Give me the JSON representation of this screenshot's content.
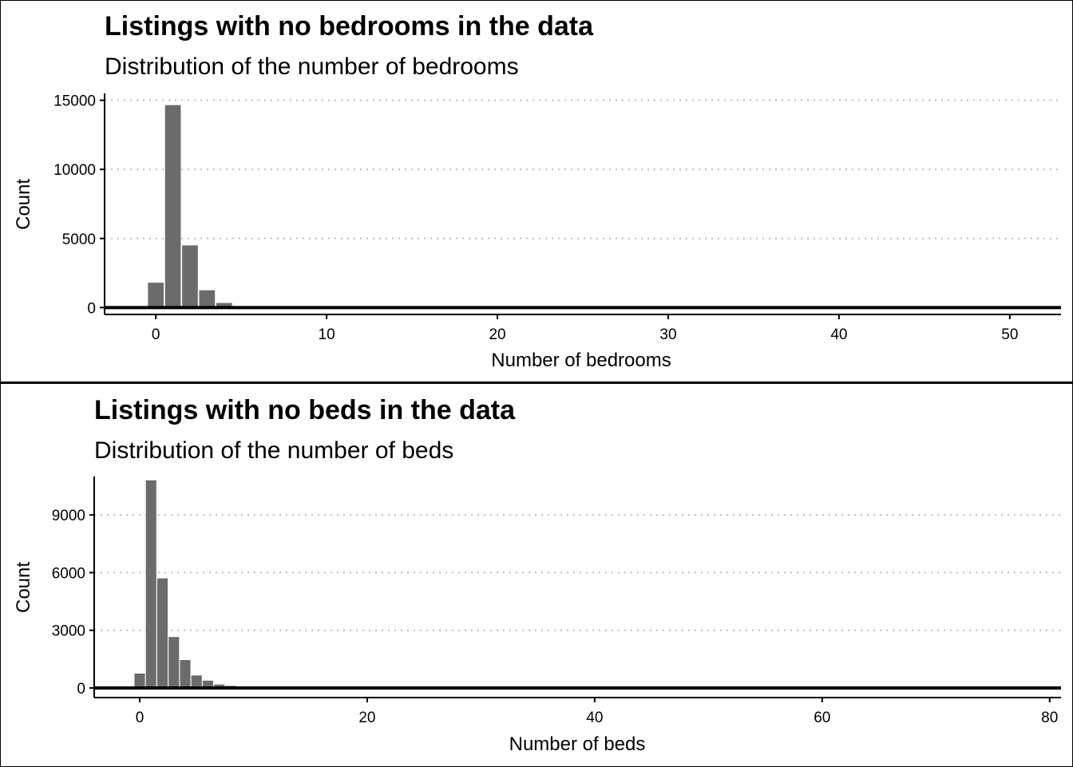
{
  "chart_data": [
    {
      "type": "bar",
      "title": "Listings with no bedrooms in the data",
      "subtitle": "Distribution of the number of bedrooms",
      "xlabel": "Number of bedrooms",
      "ylabel": "Count",
      "xlim": [
        -3,
        53
      ],
      "ylim": [
        -500,
        15500
      ],
      "x_ticks": [
        0,
        10,
        20,
        30,
        40,
        50
      ],
      "y_ticks": [
        0,
        5000,
        10000,
        15000
      ],
      "grid": "horizontal dotted",
      "bar_color": "#6b6b6b",
      "x": [
        0,
        1,
        2,
        3,
        4,
        5,
        6
      ],
      "values": [
        1800,
        14650,
        4500,
        1250,
        330,
        60,
        15
      ]
    },
    {
      "type": "bar",
      "title": "Listings with no beds in the data",
      "subtitle": "Distribution of the number of beds",
      "xlabel": "Number of beds",
      "ylabel": "Count",
      "xlim": [
        -4,
        81
      ],
      "ylim": [
        -500,
        11000
      ],
      "x_ticks": [
        0,
        20,
        40,
        60,
        80
      ],
      "y_ticks": [
        0,
        3000,
        6000,
        9000
      ],
      "grid": "horizontal dotted",
      "bar_color": "#6b6b6b",
      "x": [
        0,
        1,
        2,
        3,
        4,
        5,
        6,
        7,
        8,
        9,
        10
      ],
      "values": [
        750,
        10800,
        5700,
        2650,
        1450,
        650,
        380,
        180,
        110,
        50,
        20
      ]
    }
  ]
}
